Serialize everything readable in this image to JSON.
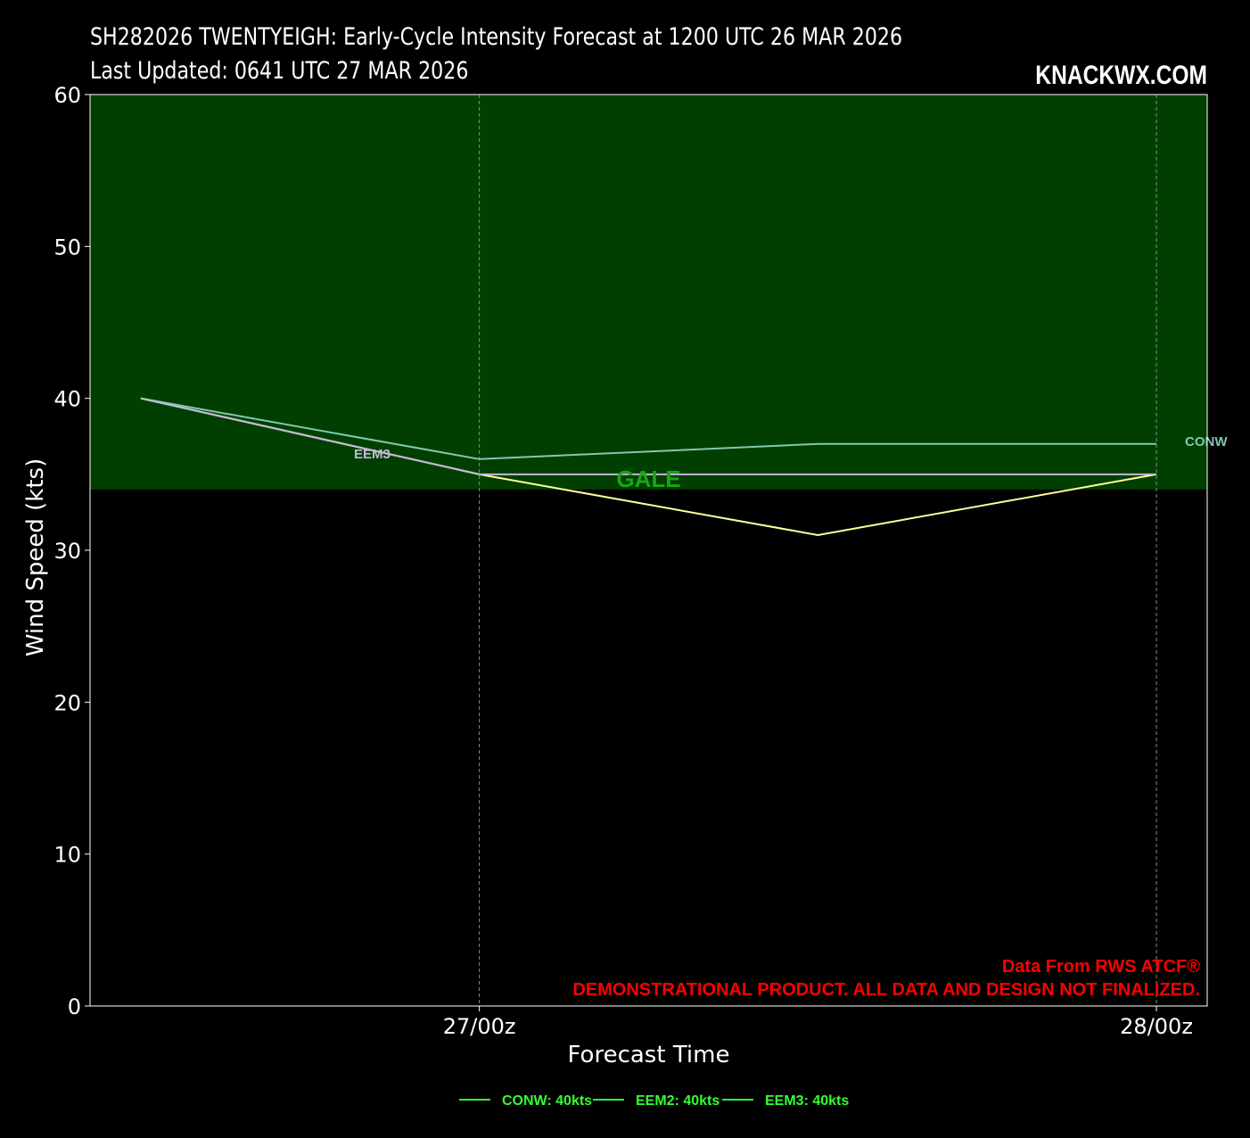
{
  "header": {
    "title_line1": "SH282026 TWENTYEIGH: Early-Cycle Intensity Forecast at 1200 UTC 26 MAR 2026",
    "title_line2": "Last Updated: 0641 UTC 27 MAR 2026",
    "brand": "KNACKWX.COM"
  },
  "credits": {
    "source": "Data From RWS ATCF®",
    "disclaimer": "DEMONSTRATIONAL PRODUCT. ALL DATA AND DESIGN NOT FINALIZED."
  },
  "colors": {
    "background": "#000000",
    "gale_band": "#003f00",
    "gale_text": "#1aa51a",
    "legend_text": "#33ff33",
    "credit_text": "#ff0000"
  },
  "chart_data": {
    "type": "line",
    "title": "SH282026 TWENTYEIGH: Early-Cycle Intensity Forecast at 1200 UTC 26 MAR 2026",
    "xlabel": "Forecast Time",
    "ylabel": "Wind Speed (kts)",
    "ylim": [
      0,
      60
    ],
    "yticks": [
      0,
      10,
      20,
      30,
      40,
      50,
      60
    ],
    "xlim_hours": [
      -3,
      63
    ],
    "x_hours": [
      0,
      20,
      40,
      60
    ],
    "xticks": [
      {
        "hour": 20,
        "label": "27/00z"
      },
      {
        "hour": 60,
        "label": "28/00z"
      }
    ],
    "grid": "vertical dashed at x ticks",
    "band": {
      "label": "GALE",
      "y_from": 34,
      "y_to": 60,
      "color": "#003f00"
    },
    "series": [
      {
        "name": "CONW",
        "values": [
          40,
          36,
          37,
          37
        ],
        "color": "#7fc9b4",
        "end_label": "CONW"
      },
      {
        "name": "EEM2",
        "values": [
          40,
          35,
          31,
          35
        ],
        "color": "#ffff99"
      },
      {
        "name": "EEM3",
        "values": [
          40,
          35,
          35,
          35
        ],
        "color": "#c4b8d8",
        "mid_label": "EEM3"
      }
    ],
    "legend": {
      "position": "bottom-center",
      "entries": [
        "CONW: 40kts",
        "EEM2: 40kts",
        "EEM3: 40kts"
      ]
    }
  }
}
